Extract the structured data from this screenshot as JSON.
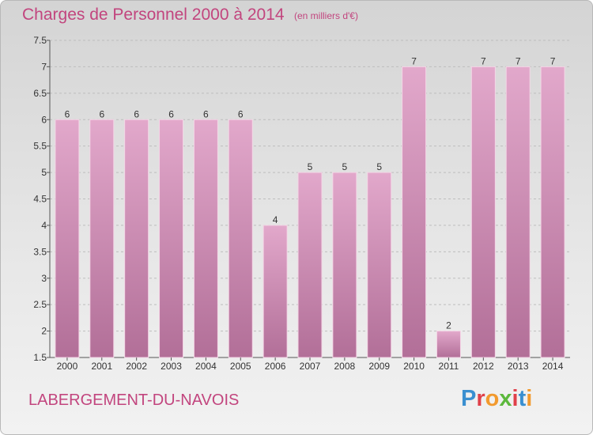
{
  "title": "Charges de Personnel 2000 à 2014",
  "subtitle": "(en milliers d'€)",
  "commune": "LABERGEMENT-DU-NAVOIS",
  "logo": {
    "text": "Proxiti",
    "letter_colors": [
      "#3a8fd0",
      "#e0404a",
      "#f29a2e",
      "#5cb83c",
      "#e0404a",
      "#3a8fd0",
      "#f29a2e"
    ]
  },
  "colors": {
    "bar_top": "#e2a8cb",
    "bar_bottom": "#b26f98",
    "bar_stroke": "#f4d6e6",
    "text": "#333333",
    "accent": "#c2457e"
  },
  "chart_data": {
    "type": "bar",
    "categories": [
      "2000",
      "2001",
      "2002",
      "2003",
      "2004",
      "2005",
      "2006",
      "2007",
      "2008",
      "2009",
      "2010",
      "2011",
      "2012",
      "2013",
      "2014"
    ],
    "values": [
      6,
      6,
      6,
      6,
      6,
      6,
      4,
      5,
      5,
      5,
      7,
      2,
      7,
      7,
      7
    ],
    "data_labels": [
      "6",
      "6",
      "6",
      "6",
      "6",
      "6",
      "4",
      "5",
      "5",
      "5",
      "7",
      "2",
      "7",
      "7",
      "7"
    ],
    "yticks": [
      "1.5",
      "2",
      "2.5",
      "3",
      "3.5",
      "4",
      "4.5",
      "5",
      "5.5",
      "6",
      "6.5",
      "7",
      "7.5"
    ],
    "ylim": [
      1.5,
      7.5
    ],
    "grid": true
  }
}
